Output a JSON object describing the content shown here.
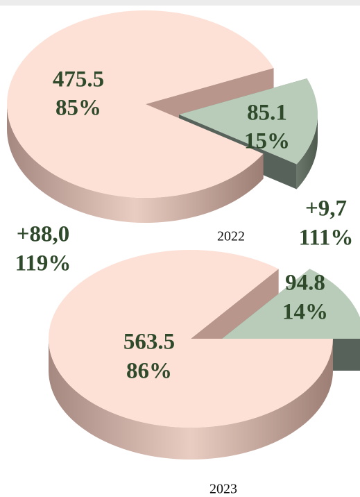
{
  "chart_data": [
    {
      "type": "pie",
      "title": "2022",
      "values": [
        475.5,
        85.1
      ],
      "percent_labels": [
        "85%",
        "15%"
      ],
      "colors": [
        "#fde1d6",
        "#b9cbb9"
      ]
    },
    {
      "type": "pie",
      "title": "2023",
      "values": [
        563.5,
        94.8
      ],
      "percent_labels": [
        "86%",
        "14%"
      ],
      "colors": [
        "#fde1d6",
        "#b9cbb9"
      ],
      "annotations": [
        "+88,0",
        "119%",
        "+9,7",
        "111%"
      ]
    }
  ]
}
